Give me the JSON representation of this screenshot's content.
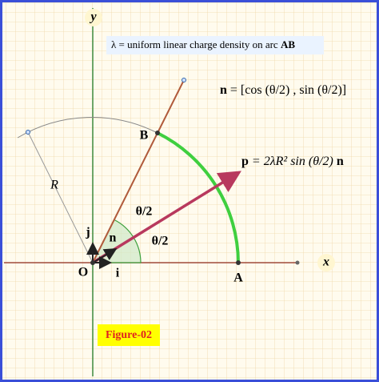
{
  "axes": {
    "x": "x",
    "y": "y"
  },
  "points": {
    "origin": "O",
    "a": "A",
    "b": "B"
  },
  "radius_label": "R",
  "unit_vectors": {
    "i": "i",
    "j": "j",
    "n": "n"
  },
  "angle_labels": [
    "θ/2",
    "θ/2"
  ],
  "caption": {
    "text": "λ = uniform linear charge density on arc",
    "arc": "AB"
  },
  "n_formula": {
    "symbol": "n",
    "expression": "= [cos (θ/2) , sin (θ/2)]"
  },
  "p_formula": {
    "symbol": "p",
    "expression": "= 2λR² sin (θ/2)",
    "unit": "n"
  },
  "figure_label": "Figure-02"
}
